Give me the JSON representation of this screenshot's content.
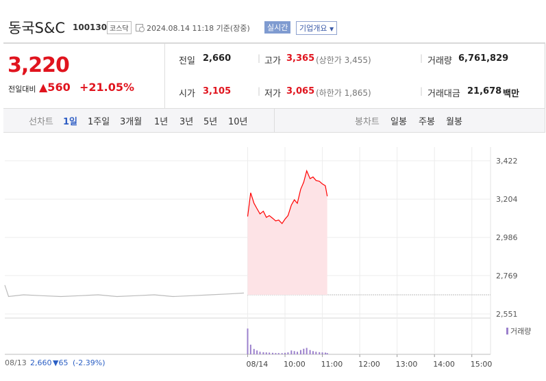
{
  "header": {
    "name": "동국S&C",
    "code": "100130",
    "market": "코스닥",
    "time": "2024.08.14 11:18 기준(장중)",
    "realtime": "실시간",
    "company_info": "기업개요"
  },
  "quote": {
    "price": "3,220",
    "change_label": "전일대비",
    "change": "▲560",
    "rate": "+21.05%",
    "rows": [
      [
        {
          "label": "전일",
          "value": "2,660"
        },
        {
          "label": "고가",
          "value": "3,365",
          "note": "(상한가 3,455)"
        },
        {
          "label": "거래량",
          "value": "6,761,829"
        }
      ],
      [
        {
          "label": "시가",
          "value": "3,105"
        },
        {
          "label": "저가",
          "value": "3,065",
          "note": "(하한가 1,865)"
        },
        {
          "label": "거래대금",
          "value": "21,678",
          "unit": "백만"
        }
      ]
    ]
  },
  "tabs": {
    "line_label": "선차트",
    "line_periods": [
      "1일",
      "1주일",
      "3개월",
      "1년",
      "3년",
      "5년",
      "10년"
    ],
    "candle_label": "봉차트",
    "candle_periods": [
      "일봉",
      "주봉",
      "월봉"
    ]
  },
  "chart_data": {
    "type": "line",
    "xlim": [
      -6.5,
      6.5
    ],
    "xticks": [
      {
        "value": 0,
        "label": "08/14"
      },
      {
        "value": 1,
        "label": "10:00"
      },
      {
        "value": 2,
        "label": "11:00"
      },
      {
        "value": 3,
        "label": "12:00"
      },
      {
        "value": 4,
        "label": "13:00"
      },
      {
        "value": 5,
        "label": "14:00"
      },
      {
        "value": 6,
        "label": "15:00"
      }
    ],
    "ylim": [
      2551,
      3422
    ],
    "yticks": [
      {
        "value": 2551,
        "label": "2,551"
      },
      {
        "value": 2769,
        "label": "2,769"
      },
      {
        "value": 2986,
        "label": "2,986"
      },
      {
        "value": 3204,
        "label": "3,204"
      },
      {
        "value": 3422,
        "label": "3,422"
      }
    ],
    "grid": true,
    "base_value": 2660,
    "series": [
      {
        "color": "#ff0000",
        "fill": "#fde3e6",
        "x": [
          0,
          0.08,
          0.17,
          0.25,
          0.33,
          0.42,
          0.5,
          0.58,
          0.67,
          0.75,
          0.83,
          0.92,
          1,
          1.08,
          1.17,
          1.25,
          1.33,
          1.42,
          1.5,
          1.58,
          1.67,
          1.75,
          1.83,
          1.92,
          2,
          2.08,
          2.13
        ],
        "values": [
          3105,
          3240,
          3180,
          3150,
          3120,
          3135,
          3100,
          3110,
          3095,
          3080,
          3085,
          3065,
          3090,
          3110,
          3170,
          3200,
          3180,
          3260,
          3300,
          3365,
          3320,
          3330,
          3310,
          3305,
          3290,
          3280,
          3220
        ]
      },
      {
        "color": "#bbbbbb",
        "x": [
          -6.5,
          -6.4,
          -6,
          -5.5,
          -5,
          -4.5,
          -4,
          -3.5,
          -3,
          -2.5,
          -2,
          -1.5,
          -1,
          -0.5,
          -0.1
        ],
        "values": [
          2715,
          2650,
          2660,
          2655,
          2650,
          2655,
          2660,
          2650,
          2655,
          2660,
          2650,
          2655,
          2660,
          2665,
          2670
        ]
      }
    ],
    "volume": {
      "name": "거래량",
      "color": "#9b80cc",
      "ylim": [
        0,
        1400000
      ],
      "x": [
        0,
        0.08,
        0.17,
        0.25,
        0.33,
        0.42,
        0.5,
        0.58,
        0.67,
        0.75,
        0.83,
        0.92,
        1,
        1.08,
        1.17,
        1.25,
        1.33,
        1.42,
        1.5,
        1.58,
        1.67,
        1.75,
        1.83,
        1.92,
        2,
        2.08,
        2.13
      ],
      "values": [
        1200000,
        450000,
        250000,
        180000,
        120000,
        100000,
        90000,
        80000,
        70000,
        60000,
        60000,
        55000,
        70000,
        90000,
        180000,
        150000,
        120000,
        200000,
        260000,
        300000,
        200000,
        150000,
        120000,
        100000,
        90000,
        80000,
        60000
      ]
    },
    "prev_day": {
      "date": "08/13",
      "close": "2,660",
      "change": "▼65",
      "rate": "(-2.39%)"
    }
  }
}
